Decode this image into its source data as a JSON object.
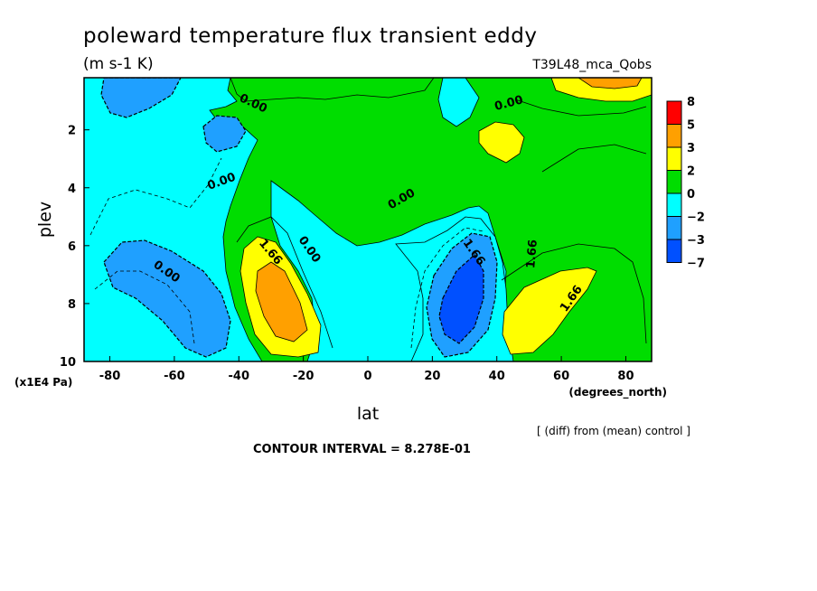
{
  "chart_data": {
    "type": "heatmap",
    "title": "poleward temperature flux transient eddy",
    "subtitle": "(m s-1 K)",
    "run_label": "T39L48_mca_Qobs",
    "xlabel": "lat",
    "x_units": "(degrees_north)",
    "ylabel": "plev",
    "y_units": "(x1E4 Pa)",
    "x_ticks": [
      "-80",
      "-60",
      "-40",
      "-20",
      "0",
      "20",
      "40",
      "60",
      "80"
    ],
    "y_ticks": [
      "2",
      "4",
      "6",
      "8",
      "10"
    ],
    "xlim": [
      -88,
      88
    ],
    "ylim": [
      10,
      0.2
    ],
    "note": "[ (diff) from (mean) control ]",
    "contour_interval_text": "CONTOUR INTERVAL = 8.278E-01",
    "contour_labels": [
      "0.00",
      "0.00",
      "0.00",
      "0.00",
      "0.00",
      "0.00",
      "1.66",
      "1.66",
      "1.66",
      "1.66",
      "1.66",
      "0.00"
    ],
    "colorbar": {
      "labels": [
        "8",
        "5",
        "3",
        "2",
        "0",
        "−2",
        "−3",
        "−7"
      ],
      "colors": [
        "#ff0000",
        "#ffa000",
        "#ffff00",
        "#00dd00",
        "#00ffff",
        "#1fa0ff",
        "#0050ff"
      ]
    },
    "regions": [
      {
        "level": -2,
        "color": "#00ffff",
        "description": "mid-latitude southern hemisphere negative",
        "center": [
          -60,
          5
        ]
      },
      {
        "level": -3,
        "color": "#1fa0ff",
        "description": "southern low",
        "center": [
          -60,
          8
        ]
      },
      {
        "level": 3,
        "color": "#ffa000",
        "description": "southern positive core",
        "center": [
          -28,
          8.5
        ]
      },
      {
        "level": -3,
        "color": "#1fa0ff",
        "description": "northern negative",
        "center": [
          30,
          8
        ]
      },
      {
        "level": -7,
        "color": "#0050ff",
        "description": "northern negative core",
        "center": [
          32,
          8.5
        ]
      },
      {
        "level": 2,
        "color": "#ffff00",
        "description": "northern positive",
        "center": [
          55,
          8.5
        ]
      },
      {
        "level": 3,
        "color": "#ffa000",
        "description": "northern positive top",
        "center": [
          72,
          0.3
        ]
      }
    ]
  },
  "texts": {
    "title": "poleward temperature flux transient eddy",
    "subtitle": "(m s-1 K)",
    "run_label": "T39L48_mca_Qobs",
    "xlabel": "lat",
    "ylabel": "plev",
    "x_units": "(degrees_north)",
    "y_units": "(x1E4 Pa)",
    "note": "[ (diff) from (mean) control ]",
    "ci": "CONTOUR INTERVAL = 8.278E-01"
  }
}
